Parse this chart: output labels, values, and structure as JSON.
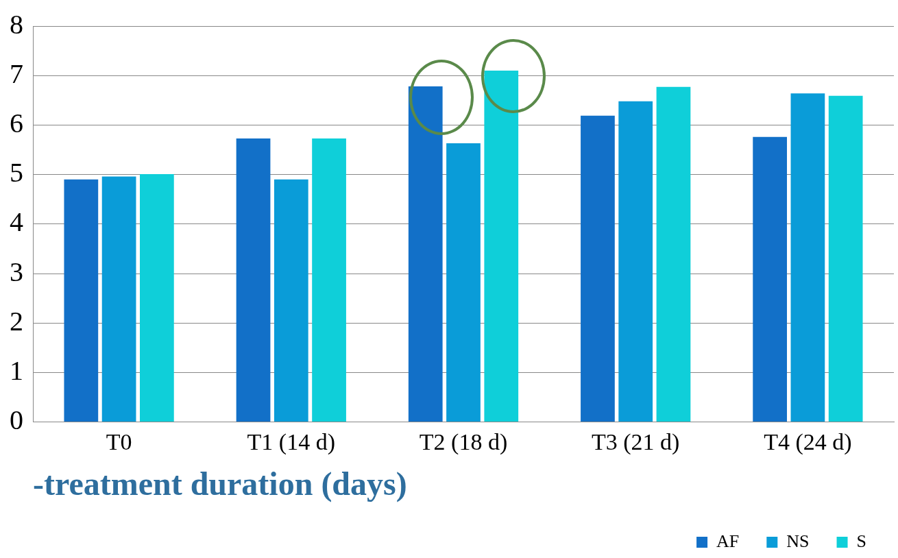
{
  "chart_data": {
    "type": "bar",
    "categories": [
      "T0",
      "T1 (14 d)",
      "T2 (18 d)",
      "T3 (21 d)",
      "T4 (24 d)"
    ],
    "xlabel": "-treatment duration (days)",
    "series": [
      {
        "name": "AF",
        "color": "#1270c8",
        "values": [
          4.9,
          5.73,
          6.78,
          6.19,
          5.76
        ]
      },
      {
        "name": "NS",
        "color": "#0a9cd8",
        "values": [
          4.96,
          4.9,
          5.63,
          6.48,
          6.64
        ]
      },
      {
        "name": "S",
        "color": "#0fcfd9",
        "values": [
          5.01,
          5.73,
          7.1,
          6.77,
          6.59
        ]
      }
    ],
    "ylim": [
      0,
      8
    ],
    "yticks": [
      0,
      1,
      2,
      3,
      4,
      5,
      6,
      7,
      8
    ],
    "grid": "y",
    "legend": "bottom right"
  }
}
